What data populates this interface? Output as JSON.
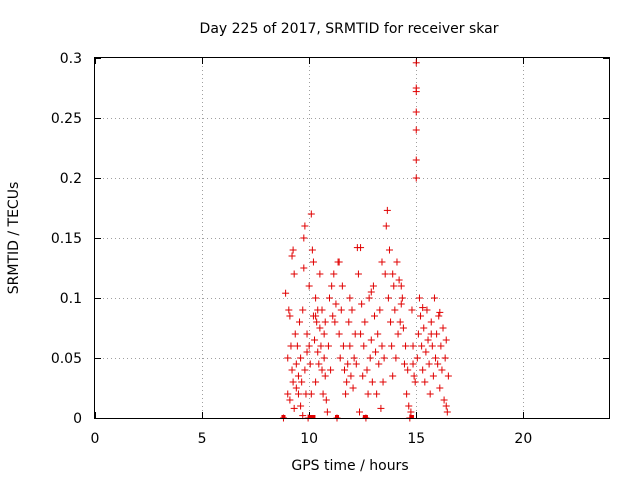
{
  "chart_data": {
    "type": "scatter",
    "title": "Day 225 of 2017, SRMTID for receiver skar",
    "xlabel": "GPS time / hours",
    "ylabel": "SRMTID / TECUs",
    "xlim": [
      0,
      24
    ],
    "ylim": [
      0,
      0.3
    ],
    "xticks": [
      0,
      5,
      10,
      15,
      20
    ],
    "xtick_labels": [
      "0",
      "5",
      "10",
      "15",
      "20"
    ],
    "yticks": [
      0,
      0.05,
      0.1,
      0.15,
      0.2,
      0.25,
      0.3
    ],
    "ytick_labels": [
      "0",
      "0.05",
      "0.1",
      "0.15",
      "0.2",
      "0.25",
      "0.3"
    ],
    "grid": true,
    "marker": "+",
    "color": "#e00000",
    "series": [
      {
        "name": "skar",
        "x": [
          8.8,
          8.9,
          9.0,
          9.0,
          9.05,
          9.1,
          9.1,
          9.15,
          9.2,
          9.2,
          9.25,
          9.3,
          9.3,
          9.35,
          9.4,
          9.4,
          9.45,
          9.5,
          9.5,
          9.55,
          9.6,
          9.6,
          9.65,
          9.7,
          9.7,
          9.75,
          9.8,
          9.8,
          9.85,
          9.9,
          9.9,
          9.95,
          10.0,
          10.0,
          10.05,
          10.1,
          10.1,
          10.15,
          10.2,
          10.2,
          10.25,
          10.3,
          10.3,
          10.35,
          10.4,
          10.4,
          10.45,
          10.5,
          10.5,
          10.55,
          10.6,
          10.6,
          10.65,
          10.7,
          10.7,
          10.75,
          10.8,
          10.85,
          10.9,
          10.95,
          11.0,
          11.05,
          11.1,
          11.15,
          11.2,
          11.25,
          11.3,
          11.35,
          11.4,
          11.45,
          11.5,
          11.55,
          11.6,
          11.65,
          11.7,
          11.75,
          11.8,
          11.85,
          11.9,
          11.95,
          12.0,
          12.05,
          12.1,
          12.15,
          12.2,
          12.25,
          12.3,
          12.35,
          12.4,
          12.45,
          12.5,
          12.55,
          12.6,
          12.65,
          12.7,
          12.75,
          12.8,
          12.85,
          12.9,
          12.95,
          13.0,
          13.05,
          13.1,
          13.15,
          13.2,
          13.25,
          13.3,
          13.35,
          13.4,
          13.45,
          13.5,
          13.55,
          13.6,
          13.65,
          13.7,
          13.75,
          13.8,
          13.85,
          13.9,
          13.95,
          14.0,
          14.05,
          14.1,
          14.15,
          14.2,
          14.25,
          14.3,
          14.35,
          14.4,
          14.45,
          14.5,
          14.55,
          14.6,
          14.65,
          14.7,
          14.75,
          14.8,
          14.85,
          14.9,
          14.95,
          15.0,
          15.0,
          15.0,
          15.0,
          15.0,
          15.0,
          15.0,
          15.05,
          15.1,
          15.15,
          15.2,
          15.25,
          15.3,
          15.35,
          15.4,
          15.45,
          15.5,
          15.55,
          15.6,
          15.65,
          15.7,
          15.75,
          15.8,
          15.85,
          15.9,
          15.95,
          16.0,
          16.05,
          16.1,
          16.15,
          16.2,
          16.25,
          16.3,
          16.35,
          16.4,
          16.45,
          16.5,
          9.25,
          9.75,
          10.3,
          10.75,
          11.4,
          11.9,
          12.4,
          12.9,
          13.4,
          13.9,
          14.3,
          14.85,
          15.3,
          15.7,
          16.1,
          16.4
        ],
        "y": [
          0.0,
          0.104,
          0.05,
          0.02,
          0.09,
          0.085,
          0.015,
          0.06,
          0.04,
          0.135,
          0.03,
          0.12,
          0.008,
          0.07,
          0.045,
          0.025,
          0.06,
          0.02,
          0.035,
          0.08,
          0.01,
          0.05,
          0.03,
          0.09,
          0.002,
          0.15,
          0.16,
          0.04,
          0.02,
          0.07,
          0.055,
          0.0,
          0.06,
          0.11,
          0.045,
          0.02,
          0.17,
          0.14,
          0.13,
          0.085,
          0.065,
          0.1,
          0.03,
          0.08,
          0.055,
          0.09,
          0.045,
          0.12,
          0.075,
          0.06,
          0.04,
          0.09,
          0.02,
          0.07,
          0.05,
          0.035,
          0.015,
          0.005,
          0.06,
          0.1,
          0.04,
          0.11,
          0.085,
          0.12,
          0.08,
          0.095,
          0.0,
          0.13,
          0.07,
          0.05,
          0.09,
          0.11,
          0.06,
          0.04,
          0.02,
          0.03,
          0.045,
          0.08,
          0.06,
          0.035,
          0.09,
          0.025,
          0.05,
          0.07,
          0.045,
          0.142,
          0.12,
          0.005,
          0.07,
          0.095,
          0.035,
          0.06,
          0.08,
          0.0,
          0.04,
          0.02,
          0.1,
          0.05,
          0.065,
          0.03,
          0.11,
          0.085,
          0.055,
          0.02,
          0.07,
          0.045,
          0.09,
          0.008,
          0.06,
          0.03,
          0.05,
          0.12,
          0.16,
          0.173,
          0.1,
          0.14,
          0.08,
          0.06,
          0.035,
          0.11,
          0.09,
          0.05,
          0.13,
          0.07,
          0.115,
          0.08,
          0.095,
          0.1,
          0.075,
          0.045,
          0.06,
          0.02,
          0.04,
          0.01,
          0.0,
          0.005,
          0.09,
          0.06,
          0.035,
          0.03,
          0.215,
          0.2,
          0.24,
          0.255,
          0.272,
          0.275,
          0.296,
          0.05,
          0.07,
          0.1,
          0.085,
          0.06,
          0.04,
          0.075,
          0.03,
          0.055,
          0.09,
          0.065,
          0.045,
          0.02,
          0.08,
          0.06,
          0.035,
          0.1,
          0.05,
          0.07,
          0.045,
          0.085,
          0.025,
          0.06,
          0.04,
          0.075,
          0.015,
          0.05,
          0.065,
          0.005,
          0.035,
          0.14,
          0.125,
          0.085,
          0.08,
          0.13,
          0.1,
          0.142,
          0.105,
          0.13,
          0.12,
          0.11,
          0.045,
          0.092,
          0.07,
          0.088,
          0.01
        ],
        "x_baseline": [
          8.8,
          10.05,
          10.2,
          11.3,
          12.6,
          12.65,
          14.8
        ]
      }
    ]
  }
}
